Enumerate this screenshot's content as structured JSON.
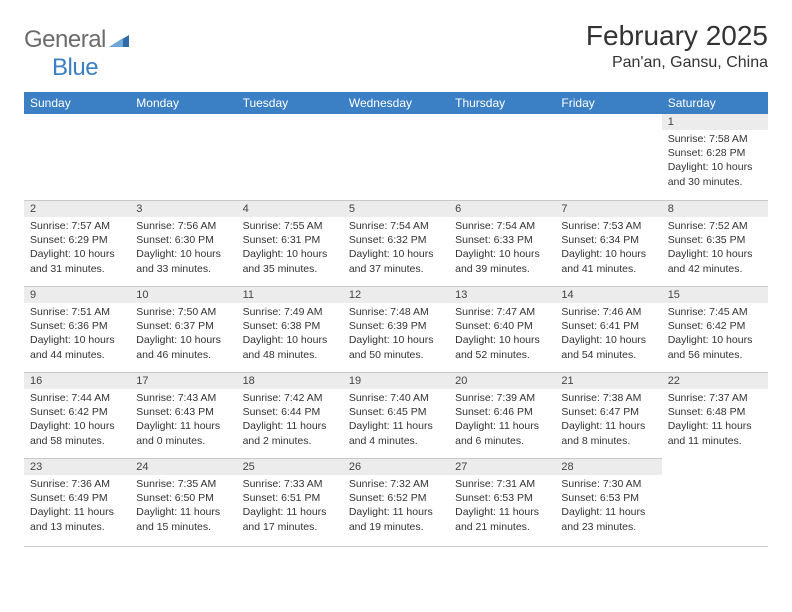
{
  "brand": {
    "part1": "General",
    "part2": "Blue"
  },
  "title": "February 2025",
  "location": "Pan'an, Gansu, China",
  "theme": {
    "header_bg": "#3b7fc4",
    "header_fg": "#ffffff",
    "daynum_bg": "#ececec",
    "page_bg": "#ffffff",
    "text_color": "#333333",
    "rule_color": "#c9c9c9",
    "logo_gray": "#6b6b6b",
    "logo_blue": "#3b7fc4",
    "month_fontsize": 28,
    "location_fontsize": 16,
    "header_fontsize": 12,
    "cell_fontsize": 10.5
  },
  "weekdays": [
    "Sunday",
    "Monday",
    "Tuesday",
    "Wednesday",
    "Thursday",
    "Friday",
    "Saturday"
  ],
  "rows": [
    [
      {
        "blank": true
      },
      {
        "blank": true
      },
      {
        "blank": true
      },
      {
        "blank": true
      },
      {
        "blank": true
      },
      {
        "blank": true
      },
      {
        "day": "1",
        "sunrise": "Sunrise: 7:58 AM",
        "sunset": "Sunset: 6:28 PM",
        "daylight": "Daylight: 10 hours and 30 minutes."
      }
    ],
    [
      {
        "day": "2",
        "sunrise": "Sunrise: 7:57 AM",
        "sunset": "Sunset: 6:29 PM",
        "daylight": "Daylight: 10 hours and 31 minutes."
      },
      {
        "day": "3",
        "sunrise": "Sunrise: 7:56 AM",
        "sunset": "Sunset: 6:30 PM",
        "daylight": "Daylight: 10 hours and 33 minutes."
      },
      {
        "day": "4",
        "sunrise": "Sunrise: 7:55 AM",
        "sunset": "Sunset: 6:31 PM",
        "daylight": "Daylight: 10 hours and 35 minutes."
      },
      {
        "day": "5",
        "sunrise": "Sunrise: 7:54 AM",
        "sunset": "Sunset: 6:32 PM",
        "daylight": "Daylight: 10 hours and 37 minutes."
      },
      {
        "day": "6",
        "sunrise": "Sunrise: 7:54 AM",
        "sunset": "Sunset: 6:33 PM",
        "daylight": "Daylight: 10 hours and 39 minutes."
      },
      {
        "day": "7",
        "sunrise": "Sunrise: 7:53 AM",
        "sunset": "Sunset: 6:34 PM",
        "daylight": "Daylight: 10 hours and 41 minutes."
      },
      {
        "day": "8",
        "sunrise": "Sunrise: 7:52 AM",
        "sunset": "Sunset: 6:35 PM",
        "daylight": "Daylight: 10 hours and 42 minutes."
      }
    ],
    [
      {
        "day": "9",
        "sunrise": "Sunrise: 7:51 AM",
        "sunset": "Sunset: 6:36 PM",
        "daylight": "Daylight: 10 hours and 44 minutes."
      },
      {
        "day": "10",
        "sunrise": "Sunrise: 7:50 AM",
        "sunset": "Sunset: 6:37 PM",
        "daylight": "Daylight: 10 hours and 46 minutes."
      },
      {
        "day": "11",
        "sunrise": "Sunrise: 7:49 AM",
        "sunset": "Sunset: 6:38 PM",
        "daylight": "Daylight: 10 hours and 48 minutes."
      },
      {
        "day": "12",
        "sunrise": "Sunrise: 7:48 AM",
        "sunset": "Sunset: 6:39 PM",
        "daylight": "Daylight: 10 hours and 50 minutes."
      },
      {
        "day": "13",
        "sunrise": "Sunrise: 7:47 AM",
        "sunset": "Sunset: 6:40 PM",
        "daylight": "Daylight: 10 hours and 52 minutes."
      },
      {
        "day": "14",
        "sunrise": "Sunrise: 7:46 AM",
        "sunset": "Sunset: 6:41 PM",
        "daylight": "Daylight: 10 hours and 54 minutes."
      },
      {
        "day": "15",
        "sunrise": "Sunrise: 7:45 AM",
        "sunset": "Sunset: 6:42 PM",
        "daylight": "Daylight: 10 hours and 56 minutes."
      }
    ],
    [
      {
        "day": "16",
        "sunrise": "Sunrise: 7:44 AM",
        "sunset": "Sunset: 6:42 PM",
        "daylight": "Daylight: 10 hours and 58 minutes."
      },
      {
        "day": "17",
        "sunrise": "Sunrise: 7:43 AM",
        "sunset": "Sunset: 6:43 PM",
        "daylight": "Daylight: 11 hours and 0 minutes."
      },
      {
        "day": "18",
        "sunrise": "Sunrise: 7:42 AM",
        "sunset": "Sunset: 6:44 PM",
        "daylight": "Daylight: 11 hours and 2 minutes."
      },
      {
        "day": "19",
        "sunrise": "Sunrise: 7:40 AM",
        "sunset": "Sunset: 6:45 PM",
        "daylight": "Daylight: 11 hours and 4 minutes."
      },
      {
        "day": "20",
        "sunrise": "Sunrise: 7:39 AM",
        "sunset": "Sunset: 6:46 PM",
        "daylight": "Daylight: 11 hours and 6 minutes."
      },
      {
        "day": "21",
        "sunrise": "Sunrise: 7:38 AM",
        "sunset": "Sunset: 6:47 PM",
        "daylight": "Daylight: 11 hours and 8 minutes."
      },
      {
        "day": "22",
        "sunrise": "Sunrise: 7:37 AM",
        "sunset": "Sunset: 6:48 PM",
        "daylight": "Daylight: 11 hours and 11 minutes."
      }
    ],
    [
      {
        "day": "23",
        "sunrise": "Sunrise: 7:36 AM",
        "sunset": "Sunset: 6:49 PM",
        "daylight": "Daylight: 11 hours and 13 minutes."
      },
      {
        "day": "24",
        "sunrise": "Sunrise: 7:35 AM",
        "sunset": "Sunset: 6:50 PM",
        "daylight": "Daylight: 11 hours and 15 minutes."
      },
      {
        "day": "25",
        "sunrise": "Sunrise: 7:33 AM",
        "sunset": "Sunset: 6:51 PM",
        "daylight": "Daylight: 11 hours and 17 minutes."
      },
      {
        "day": "26",
        "sunrise": "Sunrise: 7:32 AM",
        "sunset": "Sunset: 6:52 PM",
        "daylight": "Daylight: 11 hours and 19 minutes."
      },
      {
        "day": "27",
        "sunrise": "Sunrise: 7:31 AM",
        "sunset": "Sunset: 6:53 PM",
        "daylight": "Daylight: 11 hours and 21 minutes."
      },
      {
        "day": "28",
        "sunrise": "Sunrise: 7:30 AM",
        "sunset": "Sunset: 6:53 PM",
        "daylight": "Daylight: 11 hours and 23 minutes."
      },
      {
        "blank": true
      }
    ]
  ]
}
